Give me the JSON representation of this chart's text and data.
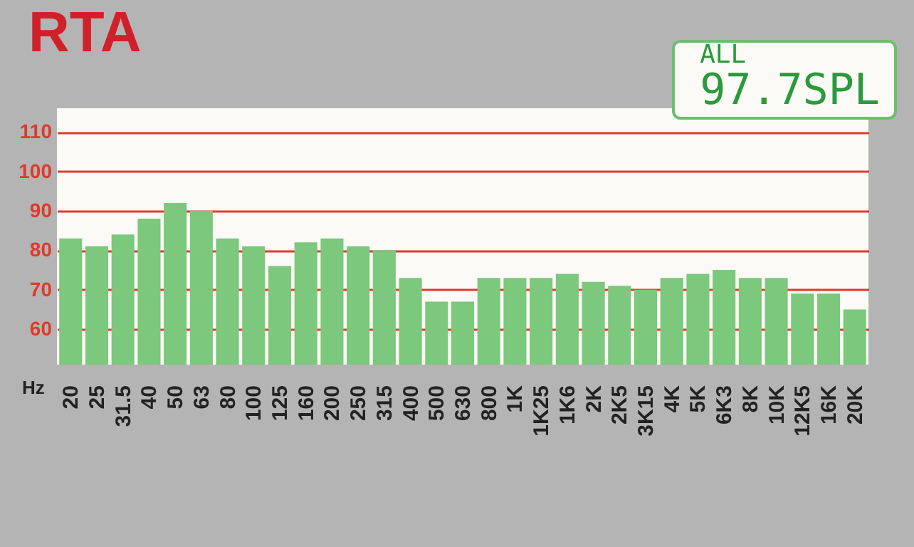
{
  "chart_data": {
    "type": "bar",
    "title": "RTA",
    "xlabel": "Hz",
    "annotations": [
      "ALL",
      "97.7SPL"
    ],
    "categories": [
      "20",
      "25",
      "31.5",
      "40",
      "50",
      "63",
      "80",
      "100",
      "125",
      "160",
      "200",
      "250",
      "315",
      "400",
      "500",
      "630",
      "800",
      "1K",
      "1K25",
      "1K6",
      "2K",
      "2K5",
      "3K15",
      "4K",
      "5K",
      "6K3",
      "8K",
      "10K",
      "12K5",
      "16K",
      "20K"
    ],
    "values": [
      83,
      81,
      84,
      88,
      92,
      90,
      83,
      81,
      76,
      82,
      83,
      81,
      80,
      73,
      67,
      67,
      73,
      73,
      73,
      74,
      72,
      71,
      70,
      73,
      74,
      75,
      73,
      73,
      69,
      69,
      65
    ],
    "color": "#7cc87c",
    "ylim": [
      51,
      116
    ],
    "yticks": [
      60,
      70,
      80,
      90,
      100,
      110
    ],
    "grid": "y"
  }
}
